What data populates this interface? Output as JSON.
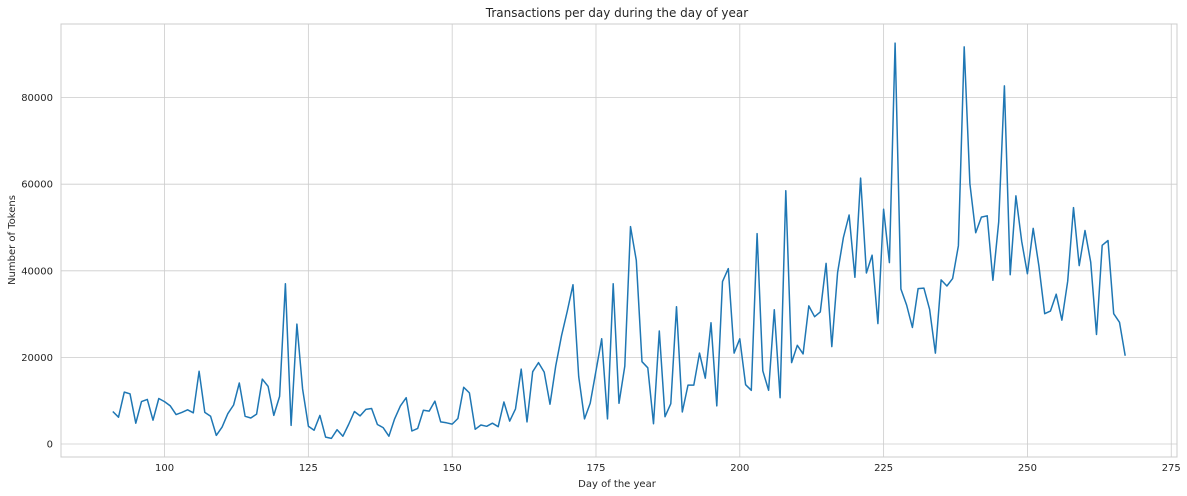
{
  "chart_data": {
    "type": "line",
    "title": "Transactions per day during the day of year",
    "xlabel": "Day of the year",
    "ylabel": "Number of Tokens",
    "xlim": [
      82,
      276
    ],
    "ylim": [
      -3000,
      97000
    ],
    "xticks": [
      100,
      125,
      150,
      175,
      200,
      225,
      250,
      275
    ],
    "yticks": [
      0,
      20000,
      40000,
      60000,
      80000
    ],
    "grid": true,
    "series": [
      {
        "name": "",
        "color": "#1f77b4",
        "x": [
          91,
          92,
          93,
          94,
          95,
          96,
          97,
          98,
          99,
          100,
          101,
          102,
          103,
          104,
          105,
          106,
          107,
          108,
          109,
          110,
          111,
          112,
          113,
          114,
          115,
          116,
          117,
          118,
          119,
          120,
          121,
          122,
          123,
          124,
          125,
          126,
          127,
          128,
          129,
          130,
          131,
          132,
          133,
          134,
          135,
          136,
          137,
          138,
          139,
          140,
          141,
          142,
          143,
          144,
          145,
          146,
          147,
          148,
          149,
          150,
          151,
          152,
          153,
          154,
          155,
          156,
          157,
          158,
          159,
          160,
          161,
          162,
          163,
          164,
          165,
          166,
          167,
          168,
          169,
          170,
          171,
          172,
          173,
          174,
          175,
          176,
          177,
          178,
          179,
          180,
          181,
          182,
          183,
          184,
          185,
          186,
          187,
          188,
          189,
          190,
          191,
          192,
          193,
          194,
          195,
          196,
          197,
          198,
          199,
          200,
          201,
          202,
          203,
          204,
          205,
          206,
          207,
          208,
          209,
          210,
          211,
          212,
          213,
          214,
          215,
          216,
          217,
          218,
          219,
          220,
          221,
          222,
          223,
          224,
          225,
          226,
          227,
          228,
          229,
          230,
          231,
          232,
          233,
          234,
          235,
          236,
          237,
          238,
          239,
          240,
          241,
          242,
          243,
          244,
          245,
          246,
          247,
          248,
          249,
          250,
          251,
          252,
          253,
          254,
          255,
          256,
          257,
          258,
          259,
          260,
          261,
          262,
          263,
          264,
          265,
          266,
          267
        ],
        "y": [
          7500,
          6200,
          12000,
          11600,
          4800,
          9800,
          10300,
          5500,
          10500,
          9800,
          8800,
          6800,
          7300,
          7900,
          7200,
          16800,
          7300,
          6400,
          2000,
          3900,
          7000,
          9000,
          14100,
          6400,
          6000,
          6900,
          15000,
          13300,
          6600,
          11000,
          37000,
          4300,
          27700,
          12700,
          4100,
          3200,
          6600,
          1600,
          1300,
          3300,
          1800,
          4500,
          7500,
          6500,
          8000,
          8200,
          4500,
          3800,
          1800,
          5800,
          8800,
          10700,
          3000,
          3600,
          7800,
          7600,
          9900,
          5100,
          4900,
          4600,
          5900,
          13100,
          11800,
          3400,
          4400,
          4100,
          4800,
          4000,
          9700,
          5300,
          8100,
          17300,
          5100,
          16700,
          18800,
          16600,
          9200,
          18000,
          25000,
          30600,
          36800,
          15600,
          5800,
          9400,
          16900,
          24300,
          5800,
          37000,
          9400,
          18000,
          50200,
          42400,
          19000,
          17600,
          4700,
          26100,
          6300,
          9300,
          31700,
          7400,
          13600,
          13600,
          21000,
          15200,
          28000,
          8800,
          37500,
          40500,
          21000,
          24300,
          13700,
          12400,
          48600,
          16900,
          12400,
          31000,
          10700,
          58500,
          18800,
          22800,
          20800,
          31900,
          29400,
          30500,
          41700,
          22500,
          39600,
          47700,
          52900,
          38500,
          61400,
          39500,
          43600,
          27800,
          54200,
          41900,
          92600,
          35800,
          32100,
          26900,
          35900,
          36000,
          31100,
          21000,
          37900,
          36500,
          38200,
          45800,
          91700,
          60100,
          48800,
          52400,
          52700,
          37800,
          51300,
          82700,
          39100,
          57300,
          46800,
          39300,
          49800,
          41100,
          30100,
          30700,
          34600,
          28600,
          37600,
          54600,
          41200,
          49300,
          42000,
          25300,
          45900,
          47000,
          30100,
          28100,
          20400
        ]
      }
    ]
  }
}
